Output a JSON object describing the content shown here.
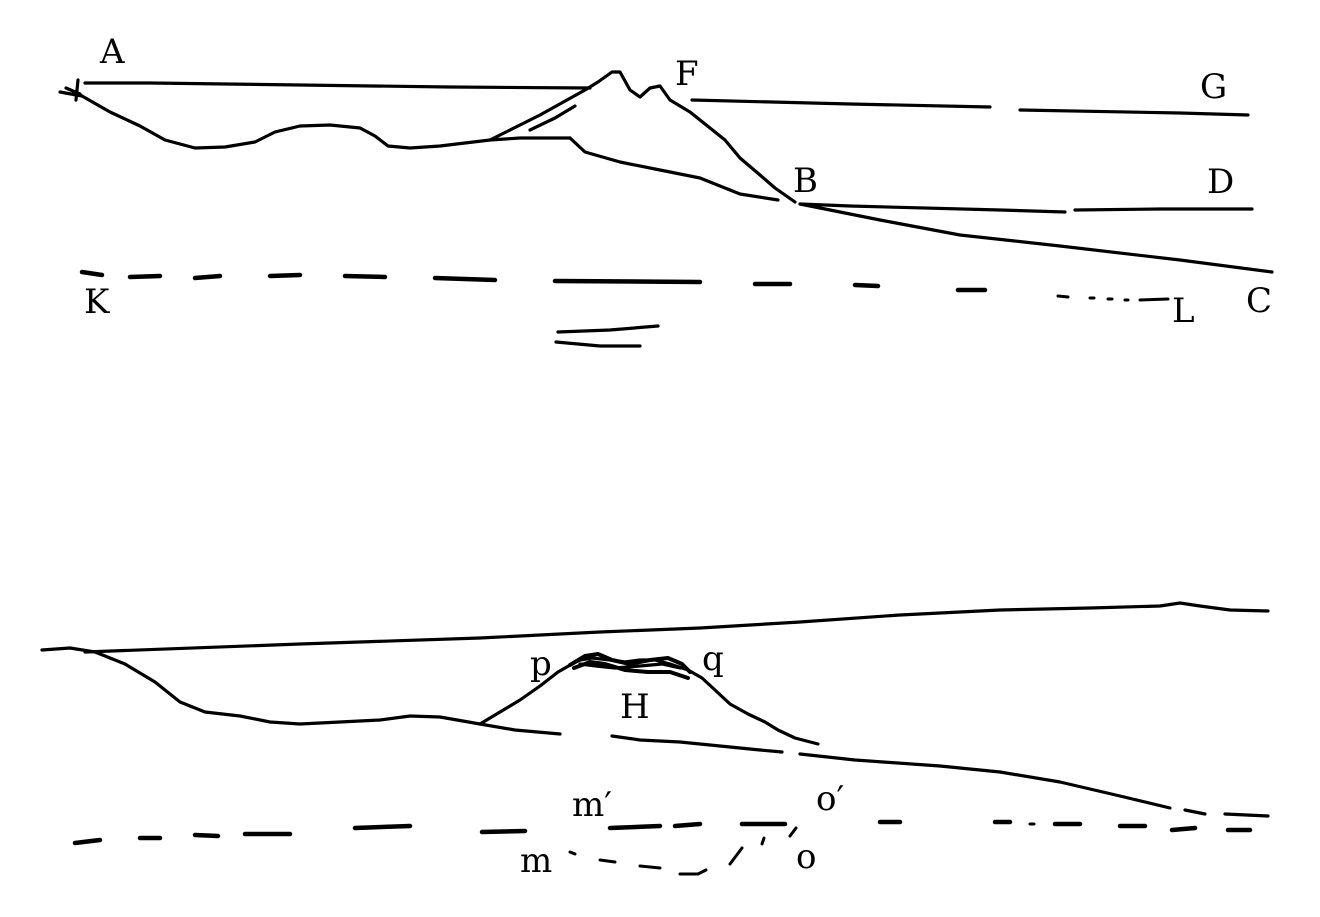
{
  "colors": {
    "ink": "#000000",
    "paper": "#ffffff"
  },
  "upper_figure": {
    "labels": {
      "A": "A",
      "F": "F",
      "G": "G",
      "B": "B",
      "D": "D",
      "K": "K",
      "L": "L",
      "C": "C"
    }
  },
  "lower_figure": {
    "labels": {
      "p": "p",
      "q": "q",
      "H": "H",
      "m_prime": "m′",
      "o_prime": "o′",
      "m": "m",
      "o": "o"
    }
  }
}
